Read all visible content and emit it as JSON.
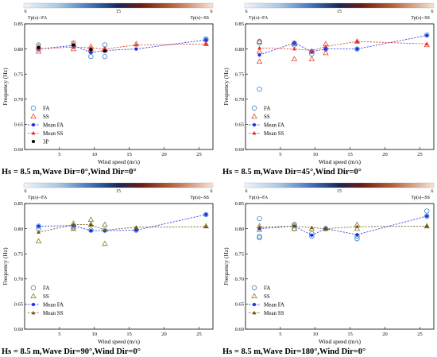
{
  "colors": {
    "fa_marker": "#3a86c8",
    "ss_marker": "#e2462b",
    "ss_marker_alt": "#8a7a1c",
    "mean_fa": "#1f2ee8",
    "mean_ss": "#e0332a",
    "mean_ss_alt": "#6b5418",
    "p3": "#000000",
    "colorbar": [
      "#e8f0f8",
      "#9bbfe0",
      "#2f5fa8",
      "#1b2d6e",
      "#5a1414",
      "#b05030",
      "#e8b890",
      "#f7e6d8"
    ]
  },
  "chart_data": [
    {
      "type": "scatter",
      "caption": "Hs = 8.5 m,Wave Dir=0°,Wind Dir=0°",
      "colorbar": {
        "left_label": "Tp(s)--FA",
        "right_label": "Tp(s)--SS",
        "ticks": [
          "6",
          "15",
          "6"
        ]
      },
      "xlabel": "Wind speed (m/s)",
      "ylabel": "Frequency (Hz)",
      "xlim": [
        0,
        27
      ],
      "ylim": [
        0.6,
        0.85
      ],
      "xticks": [
        "5",
        "10",
        "15",
        "20",
        "25"
      ],
      "yticks": [
        "0.60",
        "0.65",
        "0.70",
        "0.75",
        "0.80",
        "0.85"
      ],
      "legend": [
        "FA",
        "SS",
        "Mean FA",
        "Mean SS",
        "3P"
      ],
      "ss_marker": "triangle",
      "series": [
        {
          "name": "FA",
          "x": [
            2,
            2,
            7,
            7,
            9.5,
            9.5,
            11.5,
            11.5,
            26,
            26
          ],
          "y": [
            0.808,
            0.8,
            0.812,
            0.805,
            0.785,
            0.795,
            0.785,
            0.808,
            0.818,
            0.82
          ]
        },
        {
          "name": "SS",
          "x": [
            2,
            2,
            7,
            7,
            9.5,
            9.5,
            11.5,
            11.5,
            16,
            26
          ],
          "y": [
            0.795,
            0.805,
            0.8,
            0.81,
            0.8,
            0.805,
            0.8,
            0.797,
            0.81,
            0.81
          ]
        },
        {
          "name": "Mean FA",
          "x": [
            2,
            7,
            9.5,
            11.5,
            16,
            26
          ],
          "y": [
            0.8,
            0.807,
            0.793,
            0.797,
            0.8,
            0.818
          ]
        },
        {
          "name": "Mean SS",
          "x": [
            2,
            7,
            9.5,
            11.5,
            16,
            26
          ],
          "y": [
            0.8,
            0.804,
            0.802,
            0.8,
            0.808,
            0.81
          ]
        },
        {
          "name": "3P",
          "x": [
            2,
            7,
            9.5,
            11.5
          ],
          "y": [
            0.803,
            0.808,
            0.799,
            0.796
          ]
        }
      ]
    },
    {
      "type": "scatter",
      "caption": "Hs = 8.5 m,Wave Dir=45°,Wind Dir=0°",
      "colorbar": {
        "left_label": "Tp(s)--FA",
        "right_label": "Tp(s)--SS",
        "ticks": [
          "6",
          "15",
          "6"
        ]
      },
      "xlabel": "Wind speed (m/s)",
      "ylabel": "Frequency (Hz)",
      "xlim": [
        0,
        27
      ],
      "ylim": [
        0.6,
        0.85
      ],
      "xticks": [
        "5",
        "10",
        "15",
        "20",
        "25"
      ],
      "yticks": [
        "0.60",
        "0.65",
        "0.70",
        "0.75",
        "0.80",
        "0.85"
      ],
      "legend": [
        "FA",
        "SS",
        "Mean FA",
        "Mean SS"
      ],
      "ss_marker": "triangle",
      "series": [
        {
          "name": "FA",
          "x": [
            2,
            2,
            2,
            7,
            7,
            9.5,
            9.5,
            11.5,
            16,
            26
          ],
          "y": [
            0.72,
            0.815,
            0.812,
            0.812,
            0.808,
            0.795,
            0.79,
            0.8,
            0.8,
            0.828
          ]
        },
        {
          "name": "SS",
          "x": [
            2,
            2,
            2,
            7,
            7,
            9.5,
            9.5,
            11.5,
            11.5,
            16,
            26
          ],
          "y": [
            0.775,
            0.795,
            0.815,
            0.78,
            0.81,
            0.78,
            0.795,
            0.81,
            0.792,
            0.815,
            0.808
          ]
        },
        {
          "name": "Mean FA",
          "x": [
            2,
            7,
            9.5,
            11.5,
            16,
            26
          ],
          "y": [
            0.788,
            0.812,
            0.795,
            0.8,
            0.8,
            0.827
          ]
        },
        {
          "name": "Mean SS",
          "x": [
            2,
            7,
            9.5,
            11.5,
            16,
            26
          ],
          "y": [
            0.802,
            0.8,
            0.797,
            0.805,
            0.815,
            0.81
          ]
        }
      ]
    },
    {
      "type": "scatter",
      "caption": "Hs = 8.5 m,Wave Dir=90°,Wind Dir=0°",
      "colorbar": {
        "left_label": "Tp(s)--FA",
        "right_label": "Tp(s)--SS",
        "ticks": [
          "6",
          "15",
          "6"
        ]
      },
      "xlabel": "Wind speed (m/s)",
      "ylabel": "Frequency (Hz)",
      "xlim": [
        0,
        27
      ],
      "ylim": [
        0.6,
        0.85
      ],
      "xticks": [
        "5",
        "10",
        "15",
        "20",
        "25"
      ],
      "yticks": [
        "0.60",
        "0.65",
        "0.70",
        "0.75",
        "0.80",
        "0.85"
      ],
      "legend": [
        "FA",
        "SS",
        "Mean FA",
        "Mean SS"
      ],
      "ss_marker": "triangle-alt",
      "series": [
        {
          "name": "FA",
          "x": [
            2,
            2,
            7,
            7,
            9.5,
            11.5,
            16,
            26
          ],
          "y": [
            0.805,
            0.8,
            0.805,
            0.802,
            0.797,
            0.797,
            0.797,
            0.828
          ]
        },
        {
          "name": "SS",
          "x": [
            2,
            7,
            7,
            9.5,
            9.5,
            11.5,
            11.5,
            16,
            26
          ],
          "y": [
            0.775,
            0.81,
            0.8,
            0.818,
            0.808,
            0.77,
            0.808,
            0.8,
            0.805
          ]
        },
        {
          "name": "Mean FA",
          "x": [
            2,
            7,
            9.5,
            11.5,
            16,
            26
          ],
          "y": [
            0.805,
            0.806,
            0.796,
            0.796,
            0.797,
            0.828
          ]
        },
        {
          "name": "Mean SS",
          "x": [
            2,
            7,
            9.5,
            11.5,
            16,
            26
          ],
          "y": [
            0.793,
            0.808,
            0.808,
            0.797,
            0.803,
            0.804
          ]
        }
      ]
    },
    {
      "type": "scatter",
      "caption": "Hs = 8.5 m,Wave Dir=180°,Wind Dir=0°",
      "colorbar": {
        "left_label": "Tp(s)--FA",
        "right_label": "Tp(s)--SS",
        "ticks": [
          "6",
          "15",
          "6"
        ]
      },
      "xlabel": "Wind speed (m/s)",
      "ylabel": "Frequency (Hz)",
      "xlim": [
        0,
        27
      ],
      "ylim": [
        0.6,
        0.85
      ],
      "xticks": [
        "5",
        "10",
        "15",
        "20",
        "25"
      ],
      "yticks": [
        "0.60",
        "0.65",
        "0.70",
        "0.75",
        "0.80",
        "0.85"
      ],
      "legend": [
        "FA",
        "SS",
        "Mean FA",
        "Mean SS"
      ],
      "ss_marker": "triangle-alt",
      "series": [
        {
          "name": "FA",
          "x": [
            2,
            2,
            2,
            7,
            7,
            9.5,
            9.5,
            11.5,
            16,
            16,
            26,
            26
          ],
          "y": [
            0.82,
            0.785,
            0.782,
            0.808,
            0.8,
            0.79,
            0.785,
            0.8,
            0.785,
            0.78,
            0.835,
            0.825
          ]
        },
        {
          "name": "SS",
          "x": [
            2,
            2,
            7,
            7,
            9.5,
            11.5,
            16,
            16,
            26
          ],
          "y": [
            0.805,
            0.798,
            0.808,
            0.8,
            0.8,
            0.8,
            0.808,
            0.8,
            0.805
          ]
        },
        {
          "name": "Mean FA",
          "x": [
            2,
            7,
            9.5,
            11.5,
            16,
            26
          ],
          "y": [
            0.8,
            0.805,
            0.787,
            0.8,
            0.788,
            0.825
          ]
        },
        {
          "name": "Mean SS",
          "x": [
            2,
            7,
            9.5,
            11.5,
            16,
            26
          ],
          "y": [
            0.803,
            0.805,
            0.802,
            0.8,
            0.804,
            0.805
          ]
        }
      ]
    }
  ]
}
